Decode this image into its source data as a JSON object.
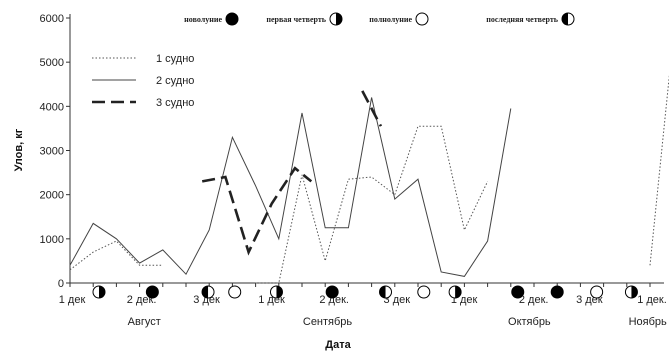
{
  "chart_data": {
    "type": "line",
    "xlabel": "Дата",
    "ylabel": "Улов, кг",
    "ylim": [
      0,
      6000
    ],
    "yticks": [
      "0",
      "1000",
      "2000",
      "3000",
      "4000",
      "5000",
      "6000"
    ],
    "x_count": 24,
    "x_tick_labels": [
      {
        "i": 0,
        "label": "1 дек"
      },
      {
        "i": 3,
        "label": "2 дек."
      },
      {
        "i": 5.8,
        "label": "3 дек"
      },
      {
        "i": 8.6,
        "label": "1 дек"
      },
      {
        "i": 11.3,
        "label": "2 дек."
      },
      {
        "i": 14,
        "label": "3 дек"
      },
      {
        "i": 16.9,
        "label": "1 дек"
      },
      {
        "i": 19.9,
        "label": "2 дек."
      },
      {
        "i": 22.3,
        "label": "3 дек"
      },
      {
        "i": 25,
        "label": "1 дек."
      }
    ],
    "months": [
      {
        "i": 3.2,
        "label": "Август"
      },
      {
        "i": 11.1,
        "label": "Сентябрь"
      },
      {
        "i": 19.8,
        "label": "Октябрь"
      },
      {
        "i": 24.9,
        "label": "Ноябрь"
      }
    ],
    "series": [
      {
        "name": "1 судно",
        "style": "dotted",
        "values": [
          300,
          700,
          950,
          400,
          400,
          null,
          0,
          0,
          2450,
          500,
          2350,
          2400,
          2000,
          3550,
          3550,
          1200,
          2300,
          null,
          null,
          null,
          null,
          null,
          400,
          5550
        ],
        "x": [
          0,
          1,
          2,
          3,
          4,
          null,
          8,
          9,
          10,
          11,
          12,
          13,
          14,
          15,
          16,
          17,
          18,
          null,
          null,
          null,
          null,
          null,
          25,
          26
        ]
      },
      {
        "name": "2 судно",
        "style": "solid",
        "values": [
          400,
          1350,
          1000,
          450,
          750,
          200,
          1200,
          3300,
          2200,
          1000,
          3850,
          1250,
          1250,
          4200,
          1900,
          2350,
          250,
          150,
          950,
          3950
        ],
        "x": [
          0,
          1,
          2,
          3,
          4,
          5,
          6,
          7,
          8,
          9,
          10,
          11,
          12,
          13,
          14,
          15,
          16,
          17,
          18,
          19
        ]
      },
      {
        "name": "3 судно",
        "style": "dashed",
        "values": [
          2300,
          2400,
          700,
          1800,
          2600,
          2300,
          null,
          4350,
          3550
        ],
        "x": [
          5.7,
          6.7,
          7.7,
          8.7,
          9.7,
          10.4,
          null,
          12.6,
          13.4
        ]
      }
    ],
    "moon_legend": [
      {
        "label": "новолуние",
        "phase": "new"
      },
      {
        "label": "первая четверть",
        "phase": "first"
      },
      {
        "label": "полнолуние",
        "phase": "full"
      },
      {
        "label": "последняя четверть",
        "phase": "last"
      }
    ],
    "moon_markers": [
      {
        "i": 1.25,
        "phase": "first"
      },
      {
        "i": 3.55,
        "phase": "new"
      },
      {
        "i": 5.95,
        "phase": "last"
      },
      {
        "i": 7.1,
        "phase": "full"
      },
      {
        "i": 8.9,
        "phase": "first"
      },
      {
        "i": 11.3,
        "phase": "new"
      },
      {
        "i": 13.6,
        "phase": "last"
      },
      {
        "i": 15.25,
        "phase": "full"
      },
      {
        "i": 16.6,
        "phase": "first"
      },
      {
        "i": 19.3,
        "phase": "new"
      },
      {
        "i": 21.0,
        "phase": "new"
      },
      {
        "i": 22.7,
        "phase": "full"
      },
      {
        "i": 24.2,
        "phase": "first"
      }
    ]
  }
}
